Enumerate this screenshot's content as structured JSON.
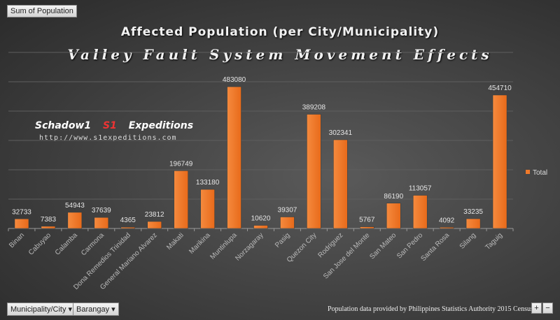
{
  "field_button": "Sum of Population",
  "filters": [
    {
      "label": "Municipality/City"
    },
    {
      "label": "Barangay"
    }
  ],
  "footnote": "Population data provided by Philippines Statistics Authority 2015 Census",
  "zoom_controls": {
    "plus": "+",
    "minus": "−"
  },
  "watermark": {
    "left": "Schadow1",
    "right": "Expeditions",
    "url": "http://www.s1expeditions.com"
  },
  "colors": {
    "bar": "#f07a2a",
    "background": "#404040"
  },
  "chart_data": {
    "type": "bar",
    "title": "Affected Population  (per City/Municipality)",
    "subtitle": "Valley Fault System Movement Effects",
    "categories": [
      "Binan",
      "Cabuyao",
      "Calamba",
      "Carmona",
      "Dona Remedios Trinidad",
      "General Mariano Alvarez",
      "Makati",
      "Marikina",
      "Muntinlupa",
      "Norzagaray",
      "Pasig",
      "Quezon City",
      "Rodriguez",
      "San Jose del Monte",
      "San Mateo",
      "San Pedro",
      "Santa Rosa",
      "Silang",
      "Taguig"
    ],
    "series": [
      {
        "name": "Total",
        "values": [
          32733,
          7383,
          54943,
          37639,
          4365,
          23812,
          196749,
          133180,
          483080,
          10620,
          39307,
          389208,
          302341,
          5767,
          86190,
          113057,
          4092,
          33235,
          454710
        ]
      }
    ],
    "ylim": [
      0,
      600000
    ],
    "grid": true,
    "legend": "right",
    "data_labels": true
  }
}
